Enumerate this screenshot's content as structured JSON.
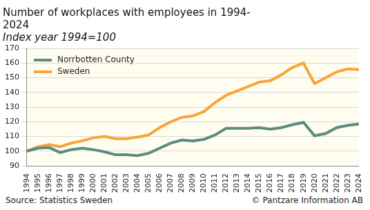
{
  "chart_data": {
    "type": "line",
    "title": [
      "Number of workplaces with employees in 1994-",
      "2024"
    ],
    "subtitle": "Index year 1994=100",
    "annotations": [
      "Source: Statistics Sweden",
      "© Pantzare Information AB"
    ],
    "categories": [
      "1994",
      "1995",
      "1996",
      "1997",
      "1998",
      "1999",
      "2000",
      "2001",
      "2002",
      "2003",
      "2004",
      "2005",
      "2006",
      "2007",
      "2008",
      "2009",
      "2010",
      "2011",
      "2012",
      "2013",
      "2014",
      "2015",
      "2016",
      "2017",
      "2018",
      "2019",
      "2020",
      "2021",
      "2022",
      "2023",
      "2024"
    ],
    "series": [
      {
        "name": "Norrbotten County",
        "color": "#5b8c7e",
        "values": [
          100,
          102,
          102.5,
          99,
          101,
          102,
          101,
          99.5,
          97.5,
          97.5,
          97,
          98.5,
          102,
          105.5,
          107.5,
          107,
          108,
          111,
          115.5,
          115.5,
          115.5,
          116,
          115,
          116,
          118,
          119.5,
          110.5,
          112,
          116,
          117.5,
          118.5
        ]
      },
      {
        "name": "Sweden",
        "color": "#f7a43a",
        "values": [
          100,
          103,
          104.5,
          103,
          105.5,
          107,
          109,
          110,
          108.5,
          108.5,
          109.5,
          111,
          116,
          120,
          123,
          124,
          127,
          133,
          138,
          141,
          144,
          147,
          148,
          152,
          157,
          160,
          146,
          150,
          154,
          156,
          155.5
        ]
      }
    ],
    "ylim": [
      90,
      170
    ],
    "yticks": [
      90,
      100,
      110,
      120,
      130,
      140,
      150,
      160,
      170
    ],
    "grid": true,
    "legend": "top-left"
  }
}
